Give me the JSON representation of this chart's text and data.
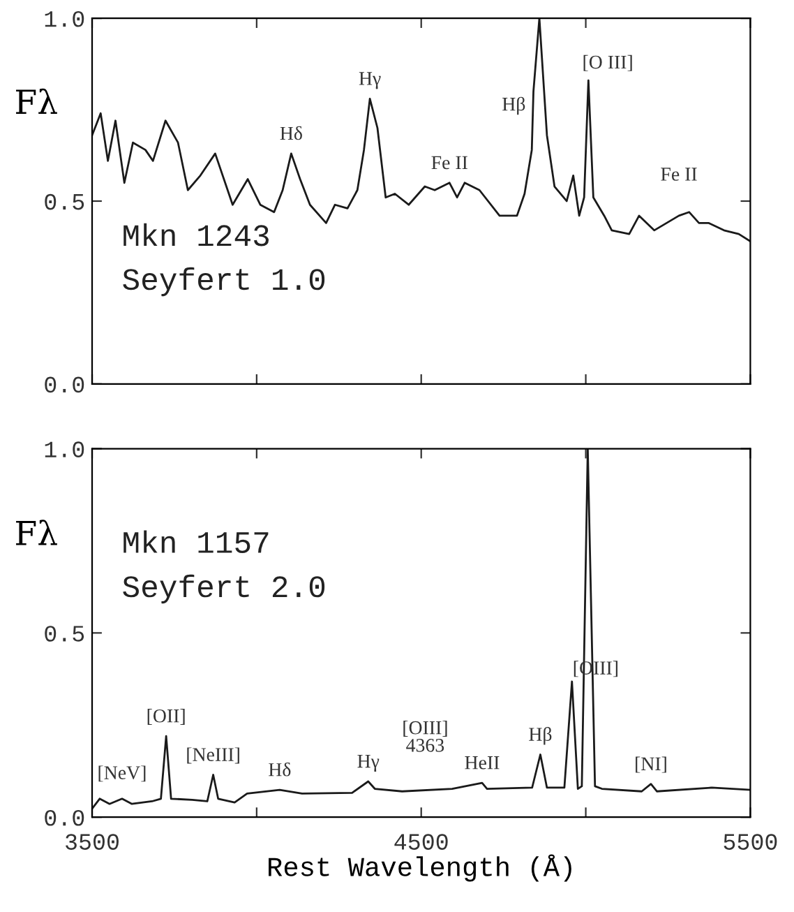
{
  "chart_data": [
    {
      "type": "line",
      "ylabel": "Fλ",
      "xlim": [
        3500,
        5500
      ],
      "ylim": [
        0,
        1
      ],
      "xticks": [
        {
          "value": 3500,
          "label": null
        },
        {
          "value": 4000,
          "label": null
        },
        {
          "value": 4500,
          "label": null
        },
        {
          "value": 5000,
          "label": null
        },
        {
          "value": 5500,
          "label": null
        }
      ],
      "yticks": [
        {
          "value": 0,
          "label": "0.0"
        },
        {
          "value": 0.5,
          "label": "0.5"
        },
        {
          "value": 1,
          "label": "1.0"
        }
      ],
      "tick_labels": "y",
      "grid": false,
      "legend": false,
      "series": [
        {
          "color": "#1a1a1a",
          "x": [
            3500,
            3526,
            3548,
            3571,
            3598,
            3624,
            3662,
            3685,
            3723,
            3761,
            3791,
            3829,
            3874,
            3927,
            3973,
            4011,
            4053,
            4079,
            4105,
            4132,
            4162,
            4211,
            4238,
            4276,
            4306,
            4326,
            4344,
            4367,
            4392,
            4420,
            4462,
            4511,
            4541,
            4586,
            4609,
            4632,
            4677,
            4738,
            4791,
            4814,
            4836,
            4841,
            4859,
            4882,
            4905,
            4942,
            4962,
            4980,
            4995,
            5008,
            5023,
            5056,
            5079,
            5132,
            5162,
            5208,
            5283,
            5314,
            5344,
            5374,
            5420,
            5465,
            5500
          ],
          "values": [
            0.68,
            0.74,
            0.61,
            0.72,
            0.55,
            0.66,
            0.64,
            0.61,
            0.72,
            0.66,
            0.53,
            0.57,
            0.63,
            0.49,
            0.56,
            0.49,
            0.47,
            0.53,
            0.63,
            0.56,
            0.49,
            0.44,
            0.49,
            0.48,
            0.53,
            0.64,
            0.78,
            0.7,
            0.51,
            0.52,
            0.49,
            0.54,
            0.53,
            0.55,
            0.51,
            0.55,
            0.53,
            0.46,
            0.46,
            0.52,
            0.64,
            0.8,
            1.0,
            0.68,
            0.54,
            0.5,
            0.57,
            0.46,
            0.51,
            0.83,
            0.51,
            0.46,
            0.42,
            0.41,
            0.46,
            0.42,
            0.46,
            0.47,
            0.44,
            0.44,
            0.42,
            0.41,
            0.39
          ]
        }
      ],
      "annotations": [
        "Mkn 1243",
        "Seyfert 1.0",
        {
          "text": "Hδ",
          "x": 4105,
          "y": 0.63
        },
        {
          "text": "Hγ",
          "x": 4344,
          "y": 0.78
        },
        {
          "text": "Fe II",
          "x": 4586,
          "y": 0.55
        },
        {
          "text": "Hβ",
          "x": 4841,
          "y": 0.8
        },
        {
          "text": "[O III]",
          "x": 5008,
          "y": 0.83
        },
        {
          "text": "Fe II",
          "x": 5283,
          "y": 0.46
        }
      ]
    },
    {
      "type": "line",
      "ylabel": "Fλ",
      "xlabel": "Rest Wavelength (Å)",
      "xlim": [
        3500,
        5500
      ],
      "ylim": [
        0,
        1
      ],
      "xticks": [
        {
          "value": 3500,
          "label": "3500"
        },
        {
          "value": 4000,
          "label": null
        },
        {
          "value": 4500,
          "label": "4500"
        },
        {
          "value": 5000,
          "label": null
        },
        {
          "value": 5500,
          "label": "5500"
        }
      ],
      "yticks": [
        {
          "value": 0,
          "label": "0.0"
        },
        {
          "value": 0.5,
          "label": "0.5"
        },
        {
          "value": 1,
          "label": "1.0"
        }
      ],
      "grid": false,
      "legend": false,
      "series": [
        {
          "color": "#1a1a1a",
          "x": [
            3500,
            3523,
            3553,
            3591,
            3621,
            3682,
            3709,
            3725,
            3740,
            3804,
            3850,
            3868,
            3883,
            3933,
            3971,
            4070,
            4138,
            4290,
            4339,
            4359,
            4442,
            4594,
            4685,
            4700,
            4837,
            4862,
            4882,
            4935,
            4958,
            4976,
            4988,
            4995,
            5006,
            5028,
            5049,
            5170,
            5198,
            5216,
            5383,
            5500
          ],
          "values": [
            0.023,
            0.05,
            0.036,
            0.05,
            0.036,
            0.043,
            0.05,
            0.22,
            0.05,
            0.047,
            0.043,
            0.115,
            0.05,
            0.04,
            0.064,
            0.074,
            0.064,
            0.066,
            0.097,
            0.077,
            0.07,
            0.077,
            0.093,
            0.077,
            0.08,
            0.17,
            0.08,
            0.08,
            0.368,
            0.077,
            0.084,
            0.44,
            1.0,
            0.084,
            0.077,
            0.07,
            0.09,
            0.07,
            0.08,
            0.074
          ]
        }
      ],
      "annotations": [
        "Mkn 1157",
        "Seyfert 2.0",
        {
          "text": "[NeV]",
          "x": 3591,
          "y": 0.05
        },
        {
          "text": "[OII]",
          "x": 3725,
          "y": 0.22
        },
        {
          "text": "[NeIII]",
          "x": 3868,
          "y": 0.115
        },
        {
          "text": "Hδ",
          "x": 4070,
          "y": 0.074
        },
        {
          "text": "Hγ",
          "x": 4339,
          "y": 0.097
        },
        {
          "text": "[OIII]\n4363",
          "x": 4359,
          "y": 0.077
        },
        {
          "text": "HeII",
          "x": 4685,
          "y": 0.093
        },
        {
          "text": "Hβ",
          "x": 4862,
          "y": 0.17
        },
        {
          "text": "[OIII]",
          "x": 4995,
          "y": 0.44
        },
        {
          "text": "[NI]",
          "x": 5198,
          "y": 0.09
        }
      ]
    }
  ]
}
